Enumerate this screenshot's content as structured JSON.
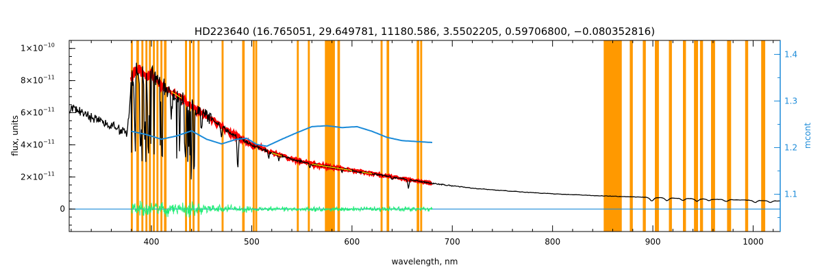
{
  "chart_data": {
    "type": "line",
    "title": "HD223640   (16.765051, 29.649781, 11180.586, 3.5502205, 0.59706800, −0.080352816)",
    "xlabel": "wavelength, nm",
    "ylabel": "flux, units",
    "y2label": "mcont",
    "xlim": [
      318,
      1027
    ],
    "ylim": [
      -1.4e-11,
      1.05e-10
    ],
    "y2lim": [
      1.02,
      1.43
    ],
    "x_ticks": [
      400,
      500,
      600,
      700,
      800,
      900,
      1000
    ],
    "x_tick_labels": [
      "400",
      "500",
      "600",
      "700",
      "800",
      "900",
      "1000"
    ],
    "y_ticks": [
      0,
      2e-11,
      4e-11,
      6e-11,
      8e-11,
      1e-10
    ],
    "y_tick_labels": [
      {
        "m": "0",
        "e": ""
      },
      {
        "m": "2×10",
        "e": "−11"
      },
      {
        "m": "4×10",
        "e": "−11"
      },
      {
        "m": "6×10",
        "e": "−11"
      },
      {
        "m": "8×10",
        "e": "−11"
      },
      {
        "m": "1×10",
        "e": "−10"
      }
    ],
    "y2_ticks": [
      1.1,
      1.2,
      1.3,
      1.4
    ],
    "y2_tick_labels": [
      "1.1",
      "1.2",
      "1.3",
      "1.4"
    ],
    "masked_regions": [
      [
        379.5,
        381.5
      ],
      [
        385,
        387.5
      ],
      [
        390,
        392
      ],
      [
        394,
        396
      ],
      [
        397.5,
        399.5
      ],
      [
        401.5,
        403.5
      ],
      [
        405,
        407
      ],
      [
        409,
        411
      ],
      [
        412.5,
        415
      ],
      [
        433.5,
        435.5
      ],
      [
        437.5,
        439.5
      ],
      [
        441,
        443
      ],
      [
        446,
        448
      ],
      [
        470,
        472
      ],
      [
        490.5,
        493
      ],
      [
        501,
        503
      ],
      [
        503.5,
        505.5
      ],
      [
        545,
        547
      ],
      [
        556,
        558
      ],
      [
        573,
        583
      ],
      [
        585.5,
        588
      ],
      [
        628.5,
        630.5
      ],
      [
        634.5,
        637
      ],
      [
        664.5,
        667
      ],
      [
        668,
        670
      ],
      [
        851,
        869
      ],
      [
        877,
        880
      ],
      [
        890,
        893
      ],
      [
        902,
        906
      ],
      [
        916,
        919
      ],
      [
        930,
        933
      ],
      [
        941,
        945
      ],
      [
        947,
        950
      ],
      [
        958,
        962
      ],
      [
        974,
        978
      ],
      [
        992,
        995
      ],
      [
        1008,
        1012
      ]
    ],
    "series": [
      {
        "role": "observed_flux",
        "color": "#000000",
        "x": [
          318,
          330,
          345,
          360,
          370,
          376,
          380,
          384,
          388,
          392,
          396,
          400,
          404,
          410,
          420,
          430,
          440,
          450,
          460,
          480,
          500,
          520,
          540,
          560,
          580,
          600,
          620,
          640,
          660,
          680,
          700,
          720,
          750,
          780,
          800,
          830,
          850,
          870,
          900,
          930,
          960,
          990,
          1027
        ],
        "y": [
          6.3e-11,
          6e-11,
          5.6e-11,
          5.2e-11,
          4.9e-11,
          4.6e-11,
          8e-11,
          8.8e-11,
          8.7e-11,
          8.4e-11,
          8.2e-11,
          8.5e-11,
          8e-11,
          7.7e-11,
          7.3e-11,
          6.9e-11,
          6.4e-11,
          6e-11,
          5.6e-11,
          4.7e-11,
          4e-11,
          3.5e-11,
          3.1e-11,
          2.8e-11,
          2.6e-11,
          2.4e-11,
          2.2e-11,
          2e-11,
          1.8e-11,
          1.6e-11,
          1.45e-11,
          1.3e-11,
          1.15e-11,
          1.02e-11,
          9.5e-12,
          8.7e-12,
          8.2e-12,
          7.8e-12,
          7.2e-12,
          6.6e-12,
          6.1e-12,
          5.6e-12,
          5e-12
        ]
      },
      {
        "role": "model_flux",
        "color": "#ff0000",
        "x": [
          380,
          384,
          388,
          392,
          396,
          400,
          404,
          410,
          420,
          430,
          440,
          450,
          460,
          480,
          500,
          520,
          540,
          560,
          580,
          600,
          620,
          640,
          660,
          680
        ],
        "y": [
          8e-11,
          8.8e-11,
          8.7e-11,
          8.4e-11,
          8.2e-11,
          8.5e-11,
          8e-11,
          7.7e-11,
          7.3e-11,
          6.9e-11,
          6.4e-11,
          6e-11,
          5.6e-11,
          4.7e-11,
          4e-11,
          3.5e-11,
          3.1e-11,
          2.8e-11,
          2.6e-11,
          2.4e-11,
          2.2e-11,
          2e-11,
          1.8e-11,
          1.6e-11
        ]
      },
      {
        "role": "continuum_correction",
        "axis": "right",
        "color": "#1a8ad8",
        "x": [
          380,
          395,
          410,
          425,
          440,
          455,
          470,
          485,
          495,
          505,
          515,
          530,
          545,
          560,
          575,
          590,
          605,
          620,
          635,
          650,
          665,
          680
        ],
        "y": [
          1.235,
          1.228,
          1.218,
          1.225,
          1.236,
          1.218,
          1.208,
          1.218,
          1.22,
          1.207,
          1.203,
          1.218,
          1.232,
          1.245,
          1.247,
          1.243,
          1.245,
          1.235,
          1.222,
          1.215,
          1.213,
          1.211
        ]
      },
      {
        "role": "residuals",
        "color": "#22ee77",
        "x": [
          380,
          680
        ],
        "y": [
          0,
          0
        ]
      },
      {
        "role": "baseline",
        "color": "#1a8ad8",
        "x": [
          318,
          1027
        ],
        "y": [
          0,
          0
        ]
      }
    ]
  }
}
